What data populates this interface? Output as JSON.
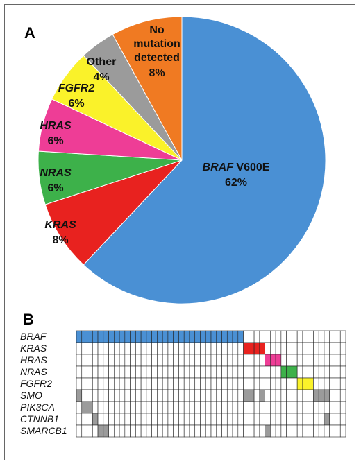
{
  "panel_a": {
    "label": "A"
  },
  "panel_b": {
    "label": "B"
  },
  "chart_data": [
    {
      "type": "pie",
      "units": "%",
      "slices": [
        {
          "gene": "BRAF",
          "suffix": "V600E",
          "value": 62,
          "value_label": "62%",
          "color": "#4A90D4"
        },
        {
          "gene": "KRAS",
          "suffix": "",
          "value": 8,
          "value_label": "8%",
          "color": "#E8221F"
        },
        {
          "gene": "NRAS",
          "suffix": "",
          "value": 6,
          "value_label": "6%",
          "color": "#3DB14A"
        },
        {
          "gene": "HRAS",
          "suffix": "",
          "value": 6,
          "value_label": "6%",
          "color": "#EE3D96"
        },
        {
          "gene": "FGFR2",
          "suffix": "",
          "value": 6,
          "value_label": "6%",
          "color": "#FAF22A"
        },
        {
          "gene": "",
          "suffix": "Other",
          "value": 4,
          "value_label": "4%",
          "color": "#9B9B9B"
        },
        {
          "gene": "",
          "suffix": "No mutation detected",
          "value": 8,
          "value_label": "8%",
          "color": "#F07A22"
        }
      ]
    },
    {
      "type": "heatmap",
      "columns": 50,
      "rows": [
        {
          "label": "BRAF",
          "color": "#4A90D4",
          "cells": [
            1,
            2,
            3,
            4,
            5,
            6,
            7,
            8,
            9,
            10,
            11,
            12,
            13,
            14,
            15,
            16,
            17,
            18,
            19,
            20,
            21,
            22,
            23,
            24,
            25,
            26,
            27,
            28,
            29,
            30,
            31
          ]
        },
        {
          "label": "KRAS",
          "color": "#E8221F",
          "cells": [
            32,
            33,
            34,
            35
          ]
        },
        {
          "label": "HRAS",
          "color": "#EE3D96",
          "cells": [
            36,
            37,
            38
          ]
        },
        {
          "label": "NRAS",
          "color": "#3DB14A",
          "cells": [
            39,
            40,
            41
          ]
        },
        {
          "label": "FGFR2",
          "color": "#FAF22A",
          "cells": [
            42,
            43,
            44
          ]
        },
        {
          "label": "SMO",
          "color": "#9B9B9B",
          "cells": [
            1,
            32,
            33,
            35,
            45,
            46,
            47
          ]
        },
        {
          "label": "PIK3CA",
          "color": "#9B9B9B",
          "cells": [
            2,
            3
          ]
        },
        {
          "label": "CTNNB1",
          "color": "#9B9B9B",
          "cells": [
            4,
            47
          ]
        },
        {
          "label": "SMARCB1",
          "color": "#9B9B9B",
          "cells": [
            5,
            6,
            36
          ]
        }
      ]
    }
  ]
}
